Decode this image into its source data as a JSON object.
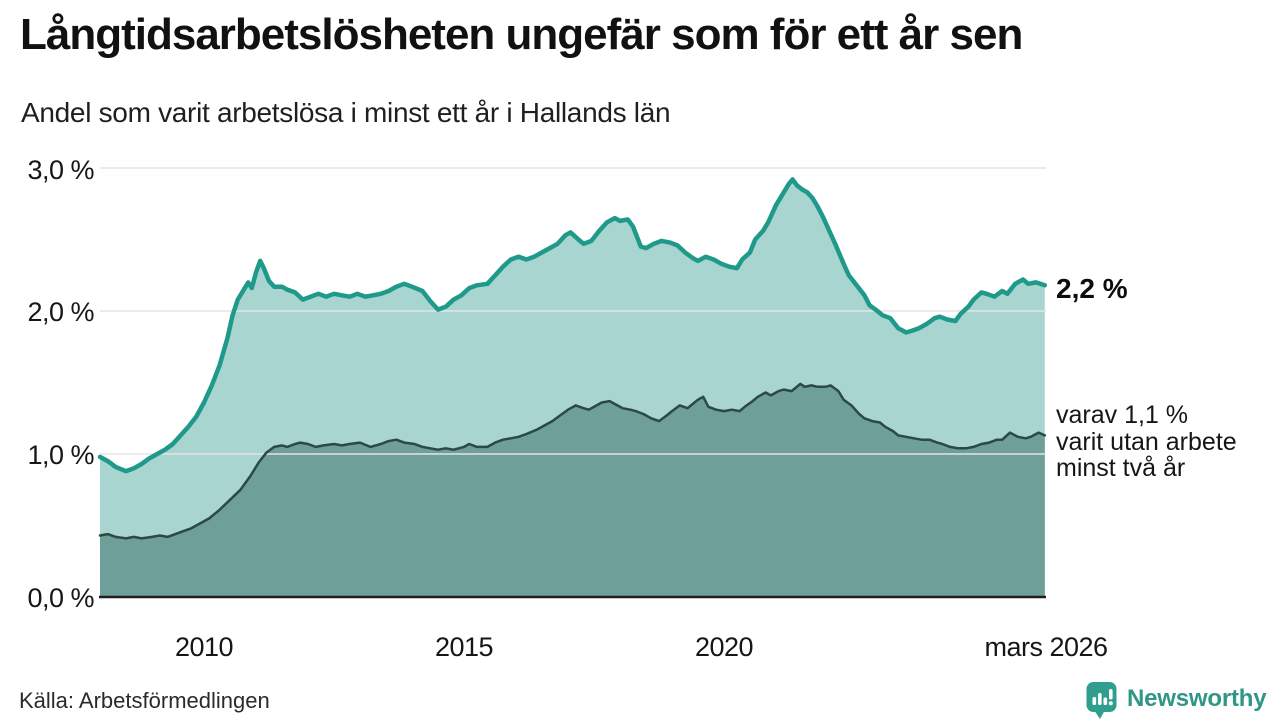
{
  "title": "Långtidsarbetslösheten ungefär som för ett år sen",
  "subtitle": "Andel som varit arbetslösa i minst ett år i Hallands län",
  "source": "Källa: Arbetsförmedlingen",
  "branding": {
    "name": "Newsworthy",
    "color": "#2f9688",
    "icon": "speech-bubble-bar-chart"
  },
  "annotations": {
    "outer_end_label": "2,2 %",
    "inner_line1": "varav 1,1 %",
    "inner_line2": "varit utan arbete",
    "inner_line3": "minst två år"
  },
  "axes": {
    "y_ticks": [
      "3,0 %",
      "2,0 %",
      "1,0 %",
      "0,0 %"
    ],
    "x_ticks": [
      "2010",
      "2015",
      "2020",
      "mars 2026"
    ]
  },
  "colors": {
    "outer_line": "#1f9a8a",
    "outer_fill": "#a8d5cf",
    "inner_line": "#2b4945",
    "inner_fill": "#6e9f99",
    "gridline": "#e4e4e4",
    "axis": "#1f1f1f"
  },
  "chart_data": {
    "type": "area",
    "title": "Långtidsarbetslösheten ungefär som för ett år sen",
    "subtitle": "Andel som varit arbetslösa i minst ett år i Hallands län",
    "x_unit": "decimal_year",
    "x_range": [
      2008.0,
      2026.17
    ],
    "ylim": [
      0,
      3.0
    ],
    "y_tick_values": [
      3.0,
      2.0,
      1.0,
      0.0
    ],
    "x_tick_positions": [
      2010,
      2015,
      2020,
      2026.17
    ],
    "grid": true,
    "series": [
      {
        "name": "Arbetslösa minst ett år",
        "end_value_label": "2,2 %",
        "points": [
          [
            2008.0,
            0.98
          ],
          [
            2008.15,
            0.95
          ],
          [
            2008.3,
            0.91
          ],
          [
            2008.5,
            0.88
          ],
          [
            2008.65,
            0.9
          ],
          [
            2008.8,
            0.93
          ],
          [
            2008.95,
            0.97
          ],
          [
            2009.1,
            1.0
          ],
          [
            2009.25,
            1.03
          ],
          [
            2009.4,
            1.07
          ],
          [
            2009.55,
            1.13
          ],
          [
            2009.7,
            1.19
          ],
          [
            2009.85,
            1.26
          ],
          [
            2010.0,
            1.36
          ],
          [
            2010.15,
            1.48
          ],
          [
            2010.3,
            1.62
          ],
          [
            2010.45,
            1.81
          ],
          [
            2010.55,
            1.97
          ],
          [
            2010.65,
            2.08
          ],
          [
            2010.75,
            2.14
          ],
          [
            2010.85,
            2.2
          ],
          [
            2010.92,
            2.16
          ],
          [
            2011.0,
            2.27
          ],
          [
            2011.08,
            2.35
          ],
          [
            2011.15,
            2.3
          ],
          [
            2011.25,
            2.21
          ],
          [
            2011.35,
            2.17
          ],
          [
            2011.5,
            2.17
          ],
          [
            2011.6,
            2.15
          ],
          [
            2011.75,
            2.13
          ],
          [
            2011.9,
            2.08
          ],
          [
            2012.05,
            2.1
          ],
          [
            2012.2,
            2.12
          ],
          [
            2012.35,
            2.1
          ],
          [
            2012.5,
            2.12
          ],
          [
            2012.65,
            2.11
          ],
          [
            2012.8,
            2.1
          ],
          [
            2012.95,
            2.12
          ],
          [
            2013.1,
            2.1
          ],
          [
            2013.25,
            2.11
          ],
          [
            2013.4,
            2.12
          ],
          [
            2013.55,
            2.14
          ],
          [
            2013.7,
            2.17
          ],
          [
            2013.85,
            2.19
          ],
          [
            2014.0,
            2.17
          ],
          [
            2014.2,
            2.14
          ],
          [
            2014.35,
            2.07
          ],
          [
            2014.5,
            2.01
          ],
          [
            2014.65,
            2.03
          ],
          [
            2014.8,
            2.08
          ],
          [
            2014.95,
            2.11
          ],
          [
            2015.1,
            2.16
          ],
          [
            2015.25,
            2.18
          ],
          [
            2015.45,
            2.19
          ],
          [
            2015.6,
            2.25
          ],
          [
            2015.75,
            2.31
          ],
          [
            2015.9,
            2.36
          ],
          [
            2016.05,
            2.38
          ],
          [
            2016.2,
            2.36
          ],
          [
            2016.35,
            2.38
          ],
          [
            2016.5,
            2.41
          ],
          [
            2016.65,
            2.44
          ],
          [
            2016.8,
            2.47
          ],
          [
            2016.95,
            2.53
          ],
          [
            2017.05,
            2.55
          ],
          [
            2017.2,
            2.5
          ],
          [
            2017.3,
            2.47
          ],
          [
            2017.45,
            2.49
          ],
          [
            2017.6,
            2.56
          ],
          [
            2017.75,
            2.62
          ],
          [
            2017.9,
            2.65
          ],
          [
            2018.0,
            2.63
          ],
          [
            2018.15,
            2.64
          ],
          [
            2018.25,
            2.59
          ],
          [
            2018.4,
            2.45
          ],
          [
            2018.5,
            2.44
          ],
          [
            2018.65,
            2.47
          ],
          [
            2018.8,
            2.49
          ],
          [
            2018.95,
            2.48
          ],
          [
            2019.1,
            2.46
          ],
          [
            2019.25,
            2.41
          ],
          [
            2019.4,
            2.37
          ],
          [
            2019.5,
            2.35
          ],
          [
            2019.65,
            2.38
          ],
          [
            2019.8,
            2.36
          ],
          [
            2019.95,
            2.33
          ],
          [
            2020.1,
            2.31
          ],
          [
            2020.25,
            2.3
          ],
          [
            2020.35,
            2.36
          ],
          [
            2020.5,
            2.41
          ],
          [
            2020.6,
            2.5
          ],
          [
            2020.75,
            2.56
          ],
          [
            2020.85,
            2.62
          ],
          [
            2021.0,
            2.74
          ],
          [
            2021.1,
            2.8
          ],
          [
            2021.25,
            2.89
          ],
          [
            2021.32,
            2.92
          ],
          [
            2021.4,
            2.88
          ],
          [
            2021.5,
            2.85
          ],
          [
            2021.6,
            2.83
          ],
          [
            2021.7,
            2.79
          ],
          [
            2021.8,
            2.73
          ],
          [
            2021.9,
            2.66
          ],
          [
            2022.0,
            2.58
          ],
          [
            2022.15,
            2.46
          ],
          [
            2022.3,
            2.33
          ],
          [
            2022.4,
            2.25
          ],
          [
            2022.55,
            2.18
          ],
          [
            2022.7,
            2.11
          ],
          [
            2022.8,
            2.04
          ],
          [
            2022.95,
            2.0
          ],
          [
            2023.05,
            1.97
          ],
          [
            2023.2,
            1.95
          ],
          [
            2023.35,
            1.88
          ],
          [
            2023.5,
            1.85
          ],
          [
            2023.6,
            1.86
          ],
          [
            2023.75,
            1.88
          ],
          [
            2023.9,
            1.91
          ],
          [
            2024.05,
            1.95
          ],
          [
            2024.15,
            1.96
          ],
          [
            2024.3,
            1.94
          ],
          [
            2024.45,
            1.93
          ],
          [
            2024.55,
            1.98
          ],
          [
            2024.7,
            2.03
          ],
          [
            2024.8,
            2.08
          ],
          [
            2024.95,
            2.13
          ],
          [
            2025.05,
            2.12
          ],
          [
            2025.2,
            2.1
          ],
          [
            2025.35,
            2.14
          ],
          [
            2025.45,
            2.12
          ],
          [
            2025.6,
            2.19
          ],
          [
            2025.75,
            2.22
          ],
          [
            2025.85,
            2.19
          ],
          [
            2026.0,
            2.2
          ],
          [
            2026.17,
            2.18
          ]
        ]
      },
      {
        "name": "Arbetslösa minst två år",
        "end_value_label": "1,1 %",
        "points": [
          [
            2008.0,
            0.43
          ],
          [
            2008.15,
            0.44
          ],
          [
            2008.3,
            0.42
          ],
          [
            2008.5,
            0.41
          ],
          [
            2008.65,
            0.42
          ],
          [
            2008.8,
            0.41
          ],
          [
            2009.0,
            0.42
          ],
          [
            2009.15,
            0.43
          ],
          [
            2009.3,
            0.42
          ],
          [
            2009.45,
            0.44
          ],
          [
            2009.6,
            0.46
          ],
          [
            2009.75,
            0.48
          ],
          [
            2009.9,
            0.51
          ],
          [
            2010.1,
            0.55
          ],
          [
            2010.3,
            0.61
          ],
          [
            2010.5,
            0.68
          ],
          [
            2010.7,
            0.75
          ],
          [
            2010.9,
            0.85
          ],
          [
            2011.05,
            0.94
          ],
          [
            2011.2,
            1.01
          ],
          [
            2011.35,
            1.05
          ],
          [
            2011.5,
            1.06
          ],
          [
            2011.6,
            1.05
          ],
          [
            2011.75,
            1.07
          ],
          [
            2011.85,
            1.08
          ],
          [
            2012.0,
            1.07
          ],
          [
            2012.15,
            1.05
          ],
          [
            2012.3,
            1.06
          ],
          [
            2012.5,
            1.07
          ],
          [
            2012.65,
            1.06
          ],
          [
            2012.8,
            1.07
          ],
          [
            2013.0,
            1.08
          ],
          [
            2013.2,
            1.05
          ],
          [
            2013.4,
            1.07
          ],
          [
            2013.55,
            1.09
          ],
          [
            2013.7,
            1.1
          ],
          [
            2013.85,
            1.08
          ],
          [
            2014.05,
            1.07
          ],
          [
            2014.2,
            1.05
          ],
          [
            2014.35,
            1.04
          ],
          [
            2014.5,
            1.03
          ],
          [
            2014.65,
            1.04
          ],
          [
            2014.8,
            1.03
          ],
          [
            2015.0,
            1.05
          ],
          [
            2015.1,
            1.07
          ],
          [
            2015.25,
            1.05
          ],
          [
            2015.45,
            1.05
          ],
          [
            2015.6,
            1.08
          ],
          [
            2015.75,
            1.1
          ],
          [
            2015.9,
            1.11
          ],
          [
            2016.05,
            1.12
          ],
          [
            2016.2,
            1.14
          ],
          [
            2016.4,
            1.17
          ],
          [
            2016.55,
            1.2
          ],
          [
            2016.7,
            1.23
          ],
          [
            2016.85,
            1.27
          ],
          [
            2017.0,
            1.31
          ],
          [
            2017.15,
            1.34
          ],
          [
            2017.3,
            1.32
          ],
          [
            2017.4,
            1.31
          ],
          [
            2017.55,
            1.34
          ],
          [
            2017.65,
            1.36
          ],
          [
            2017.8,
            1.37
          ],
          [
            2017.95,
            1.34
          ],
          [
            2018.05,
            1.32
          ],
          [
            2018.2,
            1.31
          ],
          [
            2018.3,
            1.3
          ],
          [
            2018.45,
            1.28
          ],
          [
            2018.6,
            1.25
          ],
          [
            2018.75,
            1.23
          ],
          [
            2018.9,
            1.27
          ],
          [
            2019.0,
            1.3
          ],
          [
            2019.15,
            1.34
          ],
          [
            2019.3,
            1.32
          ],
          [
            2019.4,
            1.35
          ],
          [
            2019.5,
            1.38
          ],
          [
            2019.6,
            1.4
          ],
          [
            2019.7,
            1.33
          ],
          [
            2019.85,
            1.31
          ],
          [
            2020.0,
            1.3
          ],
          [
            2020.15,
            1.31
          ],
          [
            2020.3,
            1.3
          ],
          [
            2020.4,
            1.33
          ],
          [
            2020.55,
            1.37
          ],
          [
            2020.65,
            1.4
          ],
          [
            2020.8,
            1.43
          ],
          [
            2020.9,
            1.41
          ],
          [
            2021.05,
            1.44
          ],
          [
            2021.15,
            1.45
          ],
          [
            2021.3,
            1.44
          ],
          [
            2021.4,
            1.47
          ],
          [
            2021.47,
            1.49
          ],
          [
            2021.55,
            1.47
          ],
          [
            2021.68,
            1.48
          ],
          [
            2021.8,
            1.47
          ],
          [
            2021.95,
            1.47
          ],
          [
            2022.05,
            1.48
          ],
          [
            2022.2,
            1.44
          ],
          [
            2022.3,
            1.38
          ],
          [
            2022.45,
            1.34
          ],
          [
            2022.6,
            1.28
          ],
          [
            2022.7,
            1.25
          ],
          [
            2022.85,
            1.23
          ],
          [
            2023.0,
            1.22
          ],
          [
            2023.1,
            1.19
          ],
          [
            2023.25,
            1.16
          ],
          [
            2023.35,
            1.13
          ],
          [
            2023.5,
            1.12
          ],
          [
            2023.65,
            1.11
          ],
          [
            2023.8,
            1.1
          ],
          [
            2023.95,
            1.1
          ],
          [
            2024.1,
            1.08
          ],
          [
            2024.2,
            1.07
          ],
          [
            2024.35,
            1.05
          ],
          [
            2024.5,
            1.04
          ],
          [
            2024.65,
            1.04
          ],
          [
            2024.8,
            1.05
          ],
          [
            2024.95,
            1.07
          ],
          [
            2025.1,
            1.08
          ],
          [
            2025.25,
            1.1
          ],
          [
            2025.35,
            1.1
          ],
          [
            2025.5,
            1.15
          ],
          [
            2025.65,
            1.12
          ],
          [
            2025.8,
            1.11
          ],
          [
            2025.9,
            1.12
          ],
          [
            2026.05,
            1.15
          ],
          [
            2026.17,
            1.13
          ]
        ]
      }
    ]
  }
}
